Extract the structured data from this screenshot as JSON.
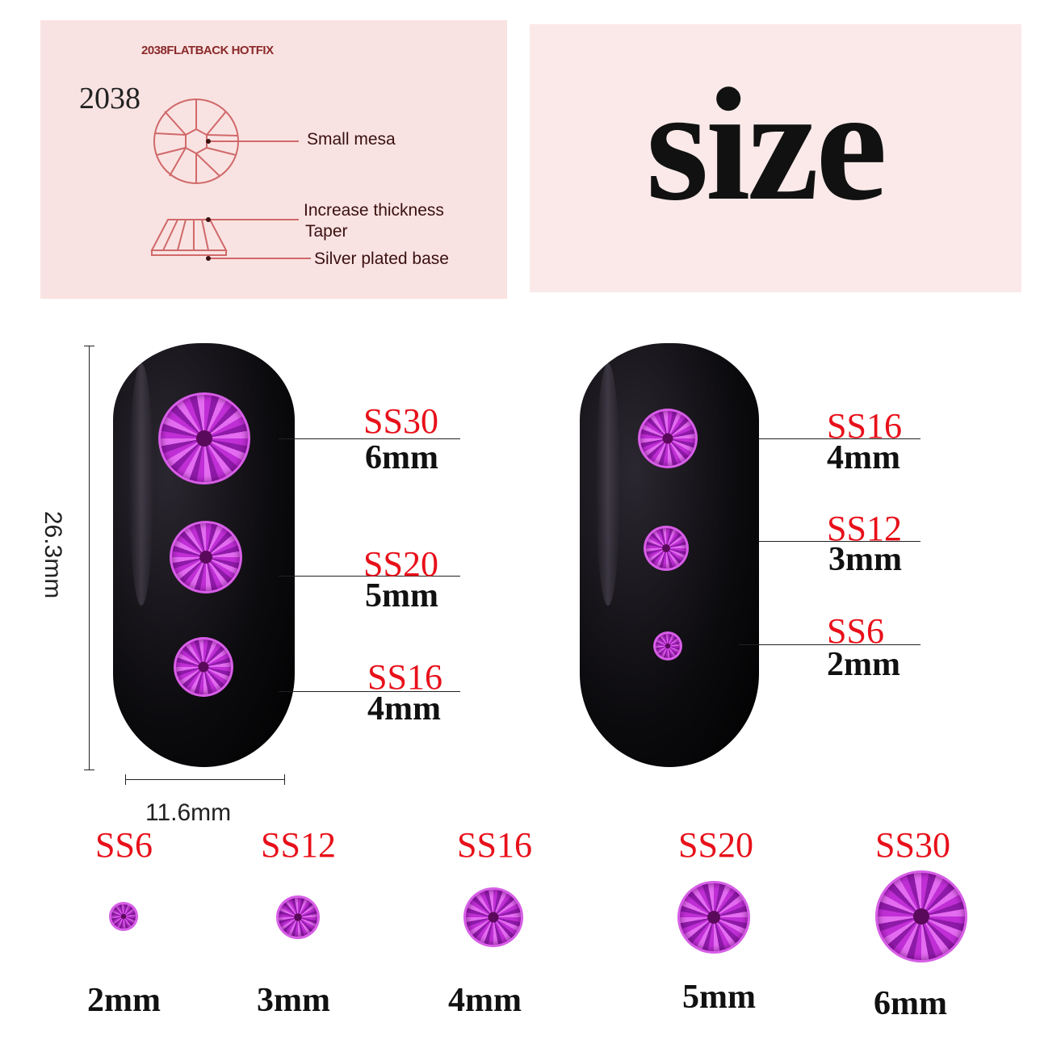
{
  "diagram": {
    "header": "2038FLATBACK HOTFIX",
    "model": "2038",
    "labels": [
      "Small mesa",
      "Increase thickness",
      "Taper",
      "Silver plated base"
    ],
    "line_color": "#d0696a"
  },
  "title": "size",
  "nail_dimensions": {
    "height": "26.3mm",
    "width": "11.6mm"
  },
  "left_nail": [
    {
      "code": "SS30",
      "size": "6mm"
    },
    {
      "code": "SS20",
      "size": "5mm"
    },
    {
      "code": "SS16",
      "size": "4mm"
    }
  ],
  "right_nail": [
    {
      "code": "SS16",
      "size": "4mm"
    },
    {
      "code": "SS12",
      "size": "3mm"
    },
    {
      "code": "SS6",
      "size": "2mm"
    }
  ],
  "size_row": [
    {
      "code": "SS6",
      "size": "2mm"
    },
    {
      "code": "SS12",
      "size": "3mm"
    },
    {
      "code": "SS16",
      "size": "4mm"
    },
    {
      "code": "SS20",
      "size": "5mm"
    },
    {
      "code": "SS30",
      "size": "6mm"
    }
  ],
  "colors": {
    "code_text": "#e8101a",
    "gem": "#b02ac8",
    "panel": "#f9e3e2"
  }
}
